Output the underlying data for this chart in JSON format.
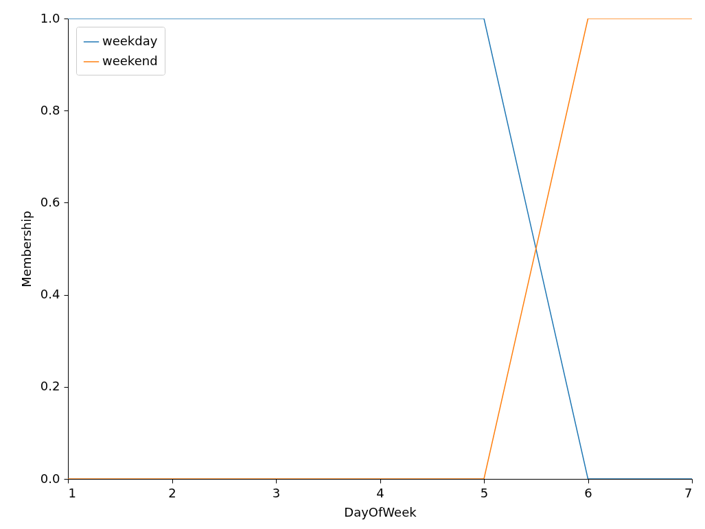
{
  "chart_data": {
    "type": "line",
    "xlabel": "DayOfWeek",
    "ylabel": "Membership",
    "xlim": [
      1,
      7
    ],
    "xticks": [
      1,
      2,
      3,
      4,
      5,
      6,
      7
    ],
    "ylim": [
      0,
      1
    ],
    "yticks": [
      {
        "value": 0,
        "label": "0.0"
      },
      {
        "value": 0.2,
        "label": "0.2"
      },
      {
        "value": 0.4,
        "label": "0.4"
      },
      {
        "value": 0.6,
        "label": "0.6"
      },
      {
        "value": 0.8,
        "label": "0.8"
      },
      {
        "value": 1,
        "label": "1.0"
      }
    ],
    "legend": "top left",
    "series": [
      {
        "name": "weekday",
        "color": "#1f77b4",
        "x": [
          1,
          5,
          6,
          7
        ],
        "values": [
          1,
          1,
          0,
          0
        ]
      },
      {
        "name": "weekend",
        "color": "#ff7f0e",
        "x": [
          1,
          5,
          6,
          7
        ],
        "values": [
          0,
          0,
          1,
          1
        ]
      }
    ]
  }
}
